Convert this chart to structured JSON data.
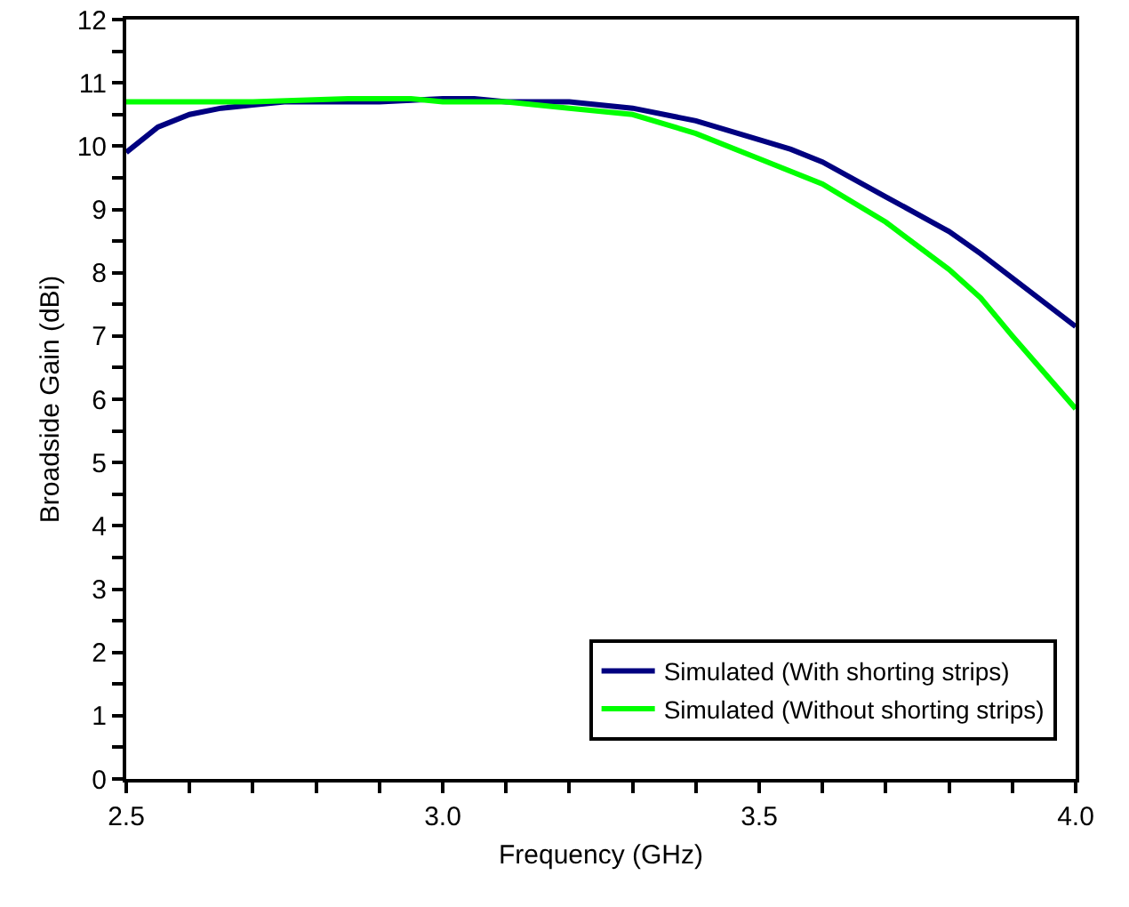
{
  "chart_data": {
    "type": "line",
    "xlabel": "Frequency (GHz)",
    "ylabel": "Broadside Gain (dBi)",
    "series": [
      {
        "name": "Simulated (With shorting strips)",
        "color": "#000080",
        "x": [
          2.5,
          2.55,
          2.6,
          2.65,
          2.7,
          2.75,
          2.8,
          2.9,
          3.0,
          3.05,
          3.1,
          3.2,
          3.3,
          3.4,
          3.5,
          3.55,
          3.6,
          3.7,
          3.8,
          3.85,
          4.0
        ],
        "values": [
          9.9,
          10.3,
          10.5,
          10.6,
          10.65,
          10.7,
          10.7,
          10.7,
          10.75,
          10.75,
          10.7,
          10.7,
          10.6,
          10.4,
          10.1,
          9.95,
          9.75,
          9.2,
          8.65,
          8.3,
          7.15
        ]
      },
      {
        "name": "Simulated (Without shorting strips)",
        "color": "#00ff00",
        "x": [
          2.5,
          2.7,
          2.85,
          2.95,
          3.0,
          3.1,
          3.2,
          3.3,
          3.4,
          3.5,
          3.6,
          3.7,
          3.8,
          3.85,
          3.9,
          4.0
        ],
        "values": [
          10.7,
          10.7,
          10.75,
          10.75,
          10.7,
          10.7,
          10.6,
          10.5,
          10.2,
          9.8,
          9.4,
          8.8,
          8.05,
          7.6,
          7.0,
          5.85
        ]
      }
    ],
    "xlim": [
      2.5,
      4.0
    ],
    "xticks": [
      {
        "value": 2.5,
        "label": "2.5"
      },
      {
        "value": 2.6,
        "label": null
      },
      {
        "value": 2.7,
        "label": null
      },
      {
        "value": 2.8,
        "label": null
      },
      {
        "value": 2.9,
        "label": null
      },
      {
        "value": 3,
        "label": "3.0"
      },
      {
        "value": 3.1,
        "label": null
      },
      {
        "value": 3.2,
        "label": null
      },
      {
        "value": 3.3,
        "label": null
      },
      {
        "value": 3.4,
        "label": null
      },
      {
        "value": 3.5,
        "label": "3.5"
      },
      {
        "value": 3.6,
        "label": null
      },
      {
        "value": 3.7,
        "label": null
      },
      {
        "value": 3.8,
        "label": null
      },
      {
        "value": 3.9,
        "label": null
      },
      {
        "value": 4,
        "label": "4.0"
      }
    ],
    "ylim": [
      0,
      12
    ],
    "yticks": [
      0,
      {
        "value": 0.5,
        "label": null
      },
      1,
      {
        "value": 1.5,
        "label": null
      },
      2,
      {
        "value": 2.5,
        "label": null
      },
      3,
      {
        "value": 3.5,
        "label": null
      },
      4,
      {
        "value": 4.5,
        "label": null
      },
      5,
      {
        "value": 5.5,
        "label": null
      },
      6,
      {
        "value": 6.5,
        "label": null
      },
      7,
      {
        "value": 7.5,
        "label": null
      },
      8,
      {
        "value": 8.5,
        "label": null
      },
      9,
      {
        "value": 9.5,
        "label": null
      },
      10,
      {
        "value": 10.5,
        "label": null
      },
      11,
      {
        "value": 11.5,
        "label": null
      },
      12
    ],
    "grid": false,
    "legend": "bottom right",
    "marker": "none",
    "line_style": "solid"
  }
}
